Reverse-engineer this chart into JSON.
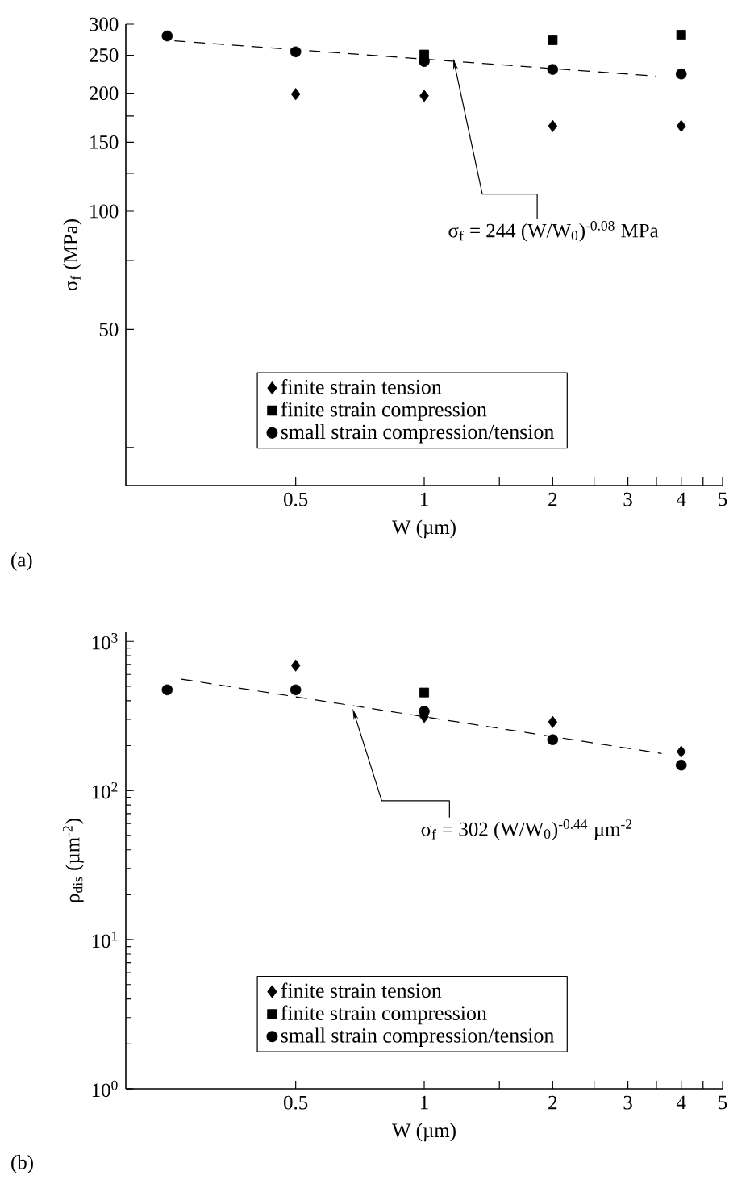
{
  "chart_data": [
    {
      "type": "scatter",
      "xlabel": "W (µm)",
      "ylabel": "σ$_{f}$ (MPa)",
      "log": "xy",
      "xlim": [
        0.2,
        5
      ],
      "ylim": [
        20,
        300
      ],
      "xticks": [
        0.5,
        1,
        {
          "value": 1.5,
          "label": null
        },
        2,
        {
          "value": 2.5,
          "label": null
        },
        3,
        {
          "value": 3.5,
          "label": null
        },
        4,
        {
          "value": 4.5,
          "label": null
        },
        5
      ],
      "yticks": [
        {
          "value": 25,
          "label": null
        },
        50,
        {
          "value": 75,
          "label": null
        },
        100,
        {
          "value": 125,
          "label": null
        },
        150,
        {
          "value": 175,
          "label": null
        },
        200,
        250,
        300
      ],
      "legend": "bottom",
      "series": [
        {
          "name": "finite strain tension",
          "type": "scatter",
          "marker": "diamond",
          "color": "#000000",
          "x": [
            0.5,
            1,
            2,
            4
          ],
          "values": [
            199,
            197,
            165,
            165
          ]
        },
        {
          "name": "finite strain compression",
          "type": "scatter",
          "marker": "square",
          "color": "#000000",
          "x": [
            1,
            2,
            4
          ],
          "values": [
            251,
            273,
            282
          ]
        },
        {
          "name": "small strain compression/tension",
          "type": "scatter",
          "marker": "circle",
          "color": "#000000",
          "x": [
            0.25,
            0.5,
            1,
            2,
            4
          ],
          "values": [
            280,
            255,
            241,
            230,
            224
          ]
        },
        {
          "type": "line",
          "line_style": "dashed",
          "marker": "none",
          "color": "#000000",
          "x": [
            0.26,
            3.5
          ],
          "values": [
            272,
            221
          ]
        }
      ],
      "annotations": [
        "(a)",
        {
          "text": "σ$_{f}$ = 244 (W/W$_{0}$)$^{-0.08}$ MPa",
          "x": 1.17,
          "y": 245
        }
      ]
    },
    {
      "type": "scatter",
      "xlabel": "W (µm)",
      "ylabel": "ρ$_{dis}$ (µm$^{-2}$)",
      "log": "xy",
      "xlim": [
        0.2,
        5
      ],
      "ylim": [
        1,
        1150
      ],
      "xticks": [
        0.5,
        1,
        {
          "value": 1.5,
          "label": null
        },
        2,
        {
          "value": 2.5,
          "label": null
        },
        3,
        {
          "value": 3.5,
          "label": null
        },
        4,
        {
          "value": 4.5,
          "label": null
        },
        5
      ],
      "yticks": [
        {
          "value": 1,
          "label": "10$^{0}$"
        },
        {
          "value": 10,
          "label": "10$^{1}$"
        },
        {
          "value": 100,
          "label": "10$^{2}$"
        },
        {
          "value": 1000,
          "label": "10$^{3}$"
        }
      ],
      "legend": "bottom",
      "series": [
        {
          "name": "finite strain tension",
          "type": "scatter",
          "marker": "diamond",
          "color": "#000000",
          "x": [
            0.5,
            1,
            2,
            4
          ],
          "values": [
            689,
            312,
            288,
            182
          ]
        },
        {
          "name": "finite strain compression",
          "type": "scatter",
          "marker": "square",
          "color": "#000000",
          "x": [
            1
          ],
          "values": [
            454
          ]
        },
        {
          "name": "small strain compression/tension",
          "type": "scatter",
          "marker": "circle",
          "color": "#000000",
          "x": [
            0.25,
            0.5,
            1,
            2,
            4
          ],
          "values": [
            473,
            473,
            340,
            219,
            148
          ]
        },
        {
          "type": "line",
          "line_style": "dashed",
          "marker": "none",
          "color": "#000000",
          "x": [
            0.27,
            3.6
          ],
          "values": [
            558,
            177
          ]
        }
      ],
      "annotations": [
        "(b)",
        {
          "text": "σ$_{f}$ = 302 (W/W$_{0}$)$^{-0.44}$ µm$^{-2}$",
          "x": 0.68,
          "y": 353
        }
      ]
    }
  ]
}
